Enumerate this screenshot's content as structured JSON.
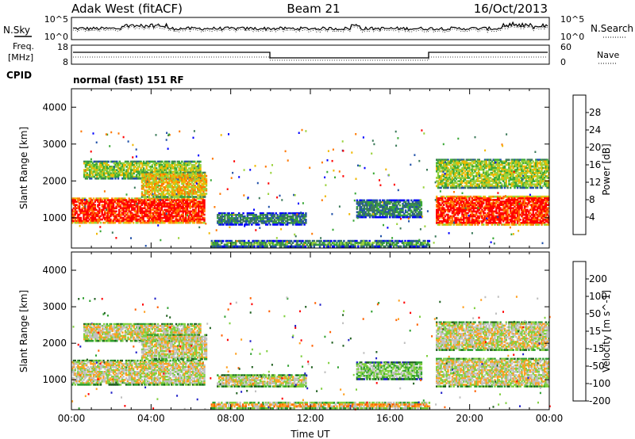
{
  "header": {
    "station": "Adak West (fitACF)",
    "beam": "Beam 21",
    "date": "16/Oct/2013"
  },
  "top_panel": {
    "left_label": "N.Sky",
    "right_label": "N.Search",
    "left_ticks": [
      "10^5",
      "10^0"
    ],
    "right_ticks": [
      "10^5",
      "10^0"
    ]
  },
  "freq_panel": {
    "label_line1": "Freq.",
    "label_line2": "[MHz]",
    "left_ticks": [
      "18",
      "8"
    ],
    "right_ticks": [
      "60",
      "0"
    ],
    "right_label": "Nave",
    "cpid_label": "CPID",
    "mode_text": "normal (fast) 151 RF"
  },
  "colors": {
    "power": [
      "#0000ff",
      "#2050a8",
      "#3c7a5a",
      "#3aa836",
      "#9ad23c",
      "#f0b800",
      "#ff7800",
      "#ff0000"
    ],
    "velocity": [
      "#2020c8",
      "#206020",
      "#30a030",
      "#80d040",
      "#c0c0c0",
      "#ffa020",
      "#ff6000",
      "#ff0000"
    ]
  },
  "chart_data": [
    {
      "type": "heatmap",
      "name": "Power",
      "ylabel": "Slant Range [km]",
      "xlim": [
        "00:00",
        "00:00"
      ],
      "ylim": [
        180,
        4500
      ],
      "yticks": [
        1000,
        2000,
        3000,
        4000
      ],
      "colorbar_label": "Power [dB]",
      "colorbar_ticks": [
        "28",
        "24",
        "20",
        "16",
        "12",
        "8",
        "4"
      ],
      "regions": [
        {
          "t0": 0.0,
          "t1": 6.7,
          "r0": 850,
          "r1": 1550,
          "level": 7
        },
        {
          "t0": 0.6,
          "t1": 6.5,
          "r0": 2050,
          "r1": 2550,
          "level": 4
        },
        {
          "t0": 3.5,
          "t1": 6.8,
          "r0": 1550,
          "r1": 2250,
          "level": 5
        },
        {
          "t0": 7.3,
          "t1": 11.8,
          "r0": 800,
          "r1": 1150,
          "level": 2
        },
        {
          "t0": 14.3,
          "t1": 17.6,
          "r0": 1000,
          "r1": 1500,
          "level": 2
        },
        {
          "t0": 18.3,
          "t1": 24.0,
          "r0": 800,
          "r1": 1600,
          "level": 7
        },
        {
          "t0": 18.3,
          "t1": 24.0,
          "r0": 1800,
          "r1": 2600,
          "level": 4
        },
        {
          "t0": 7.0,
          "t1": 18.0,
          "r0": 200,
          "r1": 400,
          "level": 3
        }
      ]
    },
    {
      "type": "heatmap",
      "name": "Velocity",
      "xlabel": "Time UT",
      "ylabel": "Slant Range [km]",
      "xlim": [
        "00:00",
        "00:00"
      ],
      "ylim": [
        180,
        4500
      ],
      "xticks": [
        "00:00",
        "04:00",
        "08:00",
        "12:00",
        "16:00",
        "20:00",
        "00:00"
      ],
      "yticks": [
        1000,
        2000,
        3000,
        4000
      ],
      "colorbar_label": "Velocity [m s^-1]",
      "colorbar_ticks": [
        "200",
        "100",
        "50",
        "15",
        "-15",
        "-50",
        "-100",
        "-200"
      ],
      "regions": [
        {
          "t0": 0.0,
          "t1": 6.7,
          "r0": 850,
          "r1": 1550,
          "level": 4
        },
        {
          "t0": 0.6,
          "t1": 6.5,
          "r0": 2050,
          "r1": 2550,
          "level": 4
        },
        {
          "t0": 3.5,
          "t1": 6.8,
          "r0": 1550,
          "r1": 2250,
          "level": 4
        },
        {
          "t0": 7.3,
          "t1": 11.8,
          "r0": 800,
          "r1": 1150,
          "level": 4
        },
        {
          "t0": 14.3,
          "t1": 17.6,
          "r0": 1000,
          "r1": 1500,
          "level": 3
        },
        {
          "t0": 18.3,
          "t1": 24.0,
          "r0": 800,
          "r1": 1600,
          "level": 4
        },
        {
          "t0": 18.3,
          "t1": 24.0,
          "r0": 1800,
          "r1": 2600,
          "level": 4
        },
        {
          "t0": 7.0,
          "t1": 18.0,
          "r0": 200,
          "r1": 400,
          "level": 5
        }
      ]
    }
  ]
}
